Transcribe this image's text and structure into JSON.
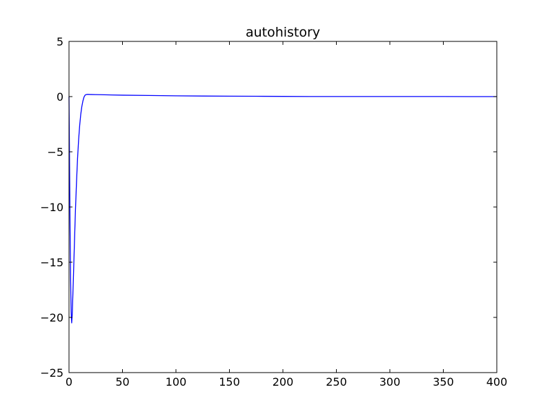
{
  "chart_data": {
    "type": "line",
    "title": "autohistory",
    "xlabel": "",
    "ylabel": "",
    "xlim": [
      0,
      400
    ],
    "ylim": [
      -25,
      5
    ],
    "x_ticks": [
      0,
      50,
      100,
      150,
      200,
      250,
      300,
      350,
      400
    ],
    "y_ticks": [
      -25,
      -20,
      -15,
      -10,
      -5,
      0,
      5
    ],
    "x_tick_labels": [
      "0",
      "50",
      "100",
      "150",
      "200",
      "250",
      "300",
      "350",
      "400"
    ],
    "y_tick_labels": [
      "−25",
      "−20",
      "−15",
      "−10",
      "−5",
      "0",
      "5"
    ],
    "grid": false,
    "series": [
      {
        "color": "#0000ff",
        "x": [
          0,
          0.5,
          1,
          1.5,
          2,
          2.5,
          3,
          4,
          5,
          6,
          7,
          8,
          9,
          10,
          11,
          12,
          13,
          14,
          15,
          16,
          17,
          18,
          19,
          20,
          25,
          30,
          40,
          50,
          75,
          100,
          125,
          150,
          175,
          200,
          225,
          250,
          275,
          300,
          325,
          350,
          375,
          400
        ],
        "y": [
          0,
          -6,
          -12,
          -16.5,
          -19.5,
          -20.5,
          -19.8,
          -16.8,
          -13.5,
          -10.4,
          -7.8,
          -5.6,
          -3.9,
          -2.6,
          -1.6,
          -0.9,
          -0.4,
          -0.05,
          0.13,
          0.18,
          0.2,
          0.2,
          0.2,
          0.19,
          0.18,
          0.17,
          0.15,
          0.13,
          0.1,
          0.07,
          0.05,
          0.04,
          0.03,
          0.02,
          0.01,
          0.01,
          0.01,
          0.01,
          0.01,
          0.01,
          0.0,
          0.0
        ]
      }
    ]
  }
}
